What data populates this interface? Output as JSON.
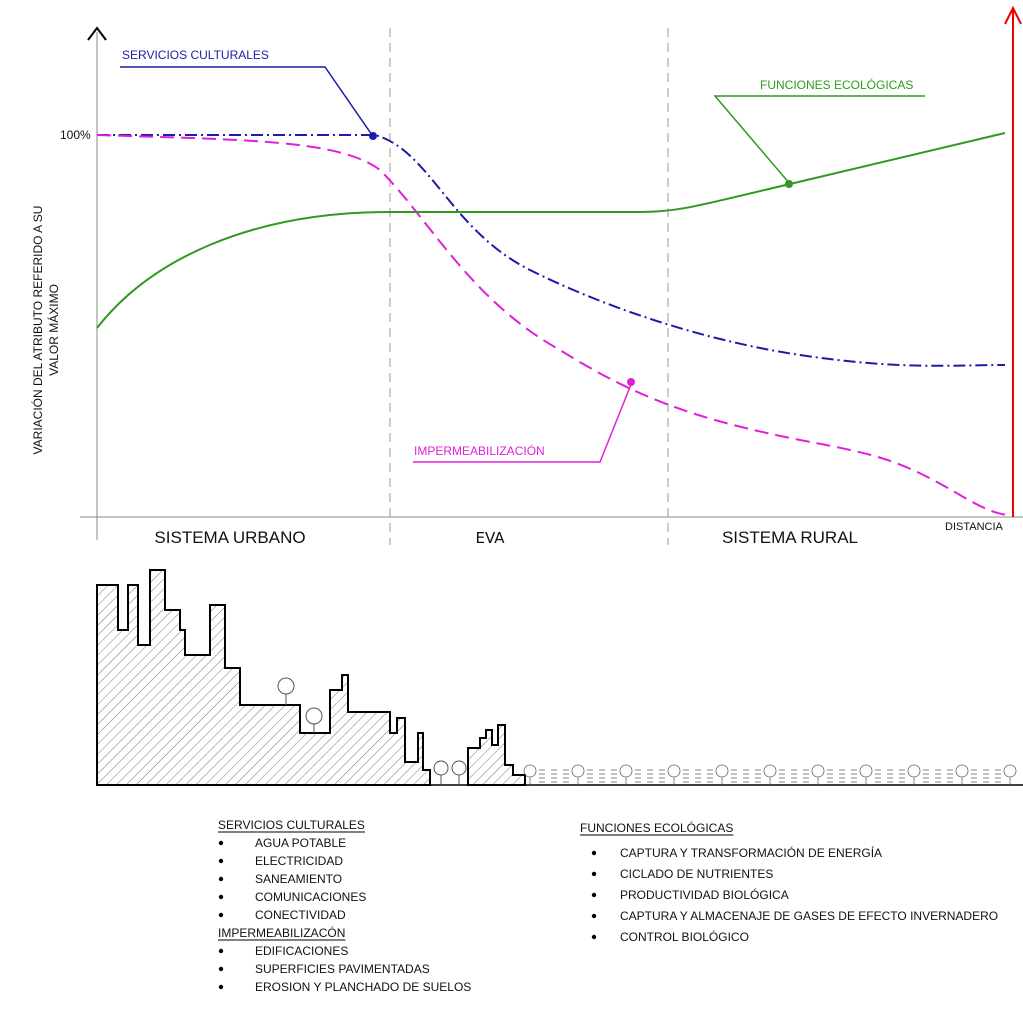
{
  "axis": {
    "y_label": [
      "VARIACIÓN DEL ATRIBUTO REFERIDO A SU",
      "VALOR MÁXIMO"
    ],
    "y_max_label": "100%",
    "x_label": "DISTANCIA"
  },
  "zones": [
    "SISTEMA URBANO",
    "EVA",
    "SISTEMA RURAL"
  ],
  "curves": [
    {
      "label": "SERVICIOS CULTURALES",
      "color": "#1c1ca8"
    },
    {
      "label": "FUNCIONES ECOLÓGICAS",
      "color": "#2e9a1e"
    },
    {
      "label": "IMPERMEABILIZACIÓN",
      "color": "#e020d8"
    }
  ],
  "legend": {
    "left": [
      {
        "title": "SERVICIOS CULTURALES",
        "items": [
          "AGUA POTABLE",
          "ELECTRICIDAD",
          "SANEAMIENTO",
          "COMUNICACIONES",
          "CONECTIVIDAD"
        ]
      },
      {
        "title": "IMPERMEABILIZACÓN",
        "items": [
          "EDIFICACIONES",
          "SUPERFICIES PAVIMENTADAS",
          "EROSION Y PLANCHADO DE SUELOS"
        ]
      }
    ],
    "right": {
      "title": "FUNCIONES ECOLÓGICAS",
      "items": [
        "CAPTURA Y TRANSFORMACIÓN DE ENERGÍA",
        "CICLADO DE NUTRIENTES",
        "PRODUCTIVIDAD BIOLÓGICA",
        "CAPTURA Y ALMACENAJE DE GASES DE EFECTO INVERNADERO",
        "CONTROL BIOLÓGICO"
      ]
    }
  }
}
